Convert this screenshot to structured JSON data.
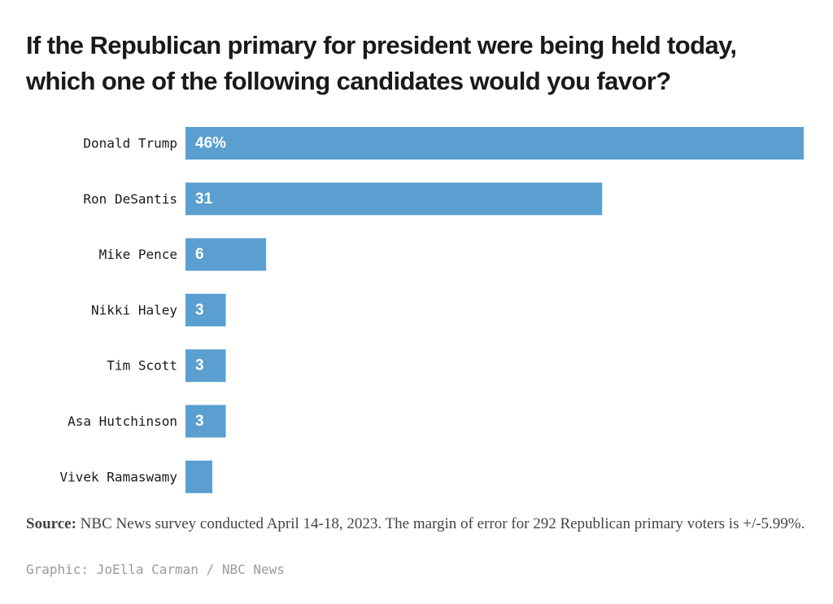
{
  "chart_data": {
    "type": "bar",
    "orientation": "horizontal",
    "title": "If the Republican primary for president were being held today, which one of the following candidates would you favor?",
    "categories": [
      "Donald Trump",
      "Ron DeSantis",
      "Mike Pence",
      "Nikki Haley",
      "Tim Scott",
      "Asa Hutchinson",
      "Vivek Ramaswamy"
    ],
    "values": [
      46,
      31,
      6,
      3,
      3,
      3,
      2
    ],
    "value_labels": [
      "46%",
      "31",
      "6",
      "3",
      "3",
      "3",
      ""
    ],
    "xlim": [
      0,
      46
    ],
    "bar_color": "#5a9fd0",
    "grid": false,
    "legend": false
  },
  "footer": {
    "source_label": "Source:",
    "source_text": " NBC News survey conducted April 14-18, 2023. The margin of error for 292 Republican primary voters is +/-5.99%.",
    "credit": "Graphic: JoElla Carman / NBC News"
  }
}
